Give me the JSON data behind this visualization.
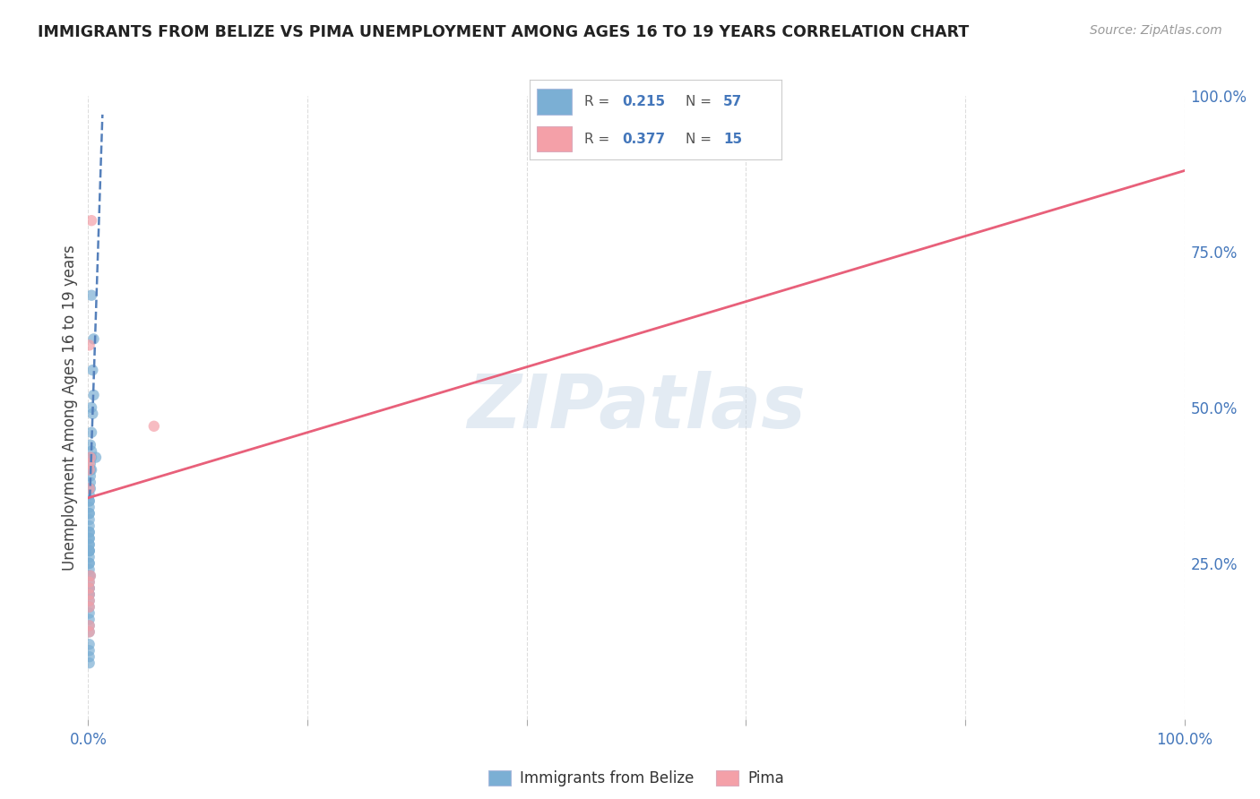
{
  "title": "IMMIGRANTS FROM BELIZE VS PIMA UNEMPLOYMENT AMONG AGES 16 TO 19 YEARS CORRELATION CHART",
  "source": "Source: ZipAtlas.com",
  "ylabel": "Unemployment Among Ages 16 to 19 years",
  "xlim": [
    0.0,
    1.0
  ],
  "ylim": [
    0.0,
    1.0
  ],
  "blue_color": "#7BAFD4",
  "pink_color": "#F4A0A8",
  "blue_line_color": "#5580BB",
  "pink_line_color": "#E8607A",
  "legend_R1": "0.215",
  "legend_N1": "57",
  "legend_R2": "0.377",
  "legend_N2": "15",
  "blue_scatter_x": [
    0.003,
    0.005,
    0.004,
    0.005,
    0.003,
    0.004,
    0.003,
    0.002,
    0.003,
    0.003,
    0.002,
    0.002,
    0.002,
    0.003,
    0.002,
    0.002,
    0.002,
    0.001,
    0.001,
    0.001,
    0.001,
    0.001,
    0.001,
    0.001,
    0.001,
    0.001,
    0.001,
    0.001,
    0.001,
    0.001,
    0.001,
    0.001,
    0.001,
    0.001,
    0.001,
    0.001,
    0.001,
    0.001,
    0.001,
    0.001,
    0.002,
    0.001,
    0.001,
    0.001,
    0.001,
    0.001,
    0.001,
    0.001,
    0.001,
    0.001,
    0.007,
    0.001,
    0.001,
    0.001,
    0.001,
    0.001,
    0.001
  ],
  "blue_scatter_y": [
    0.68,
    0.61,
    0.56,
    0.52,
    0.5,
    0.49,
    0.46,
    0.44,
    0.43,
    0.42,
    0.42,
    0.41,
    0.4,
    0.4,
    0.39,
    0.38,
    0.37,
    0.37,
    0.36,
    0.35,
    0.35,
    0.34,
    0.33,
    0.33,
    0.32,
    0.31,
    0.3,
    0.3,
    0.29,
    0.29,
    0.28,
    0.28,
    0.27,
    0.27,
    0.27,
    0.26,
    0.25,
    0.25,
    0.24,
    0.23,
    0.23,
    0.22,
    0.21,
    0.21,
    0.2,
    0.2,
    0.19,
    0.18,
    0.17,
    0.16,
    0.42,
    0.15,
    0.14,
    0.12,
    0.11,
    0.1,
    0.09
  ],
  "pink_scatter_x": [
    0.003,
    0.001,
    0.002,
    0.001,
    0.001,
    0.001,
    0.002,
    0.001,
    0.001,
    0.001,
    0.001,
    0.06,
    0.001,
    0.001,
    0.001
  ],
  "pink_scatter_y": [
    0.8,
    0.6,
    0.42,
    0.41,
    0.4,
    0.37,
    0.23,
    0.22,
    0.21,
    0.2,
    0.19,
    0.47,
    0.18,
    0.15,
    0.14
  ],
  "blue_line_x0": 0.0015,
  "blue_line_y0": 0.355,
  "blue_line_x1": 0.013,
  "blue_line_y1": 0.97,
  "pink_line_x0": 0.0,
  "pink_line_y0": 0.355,
  "pink_line_x1": 1.0,
  "pink_line_y1": 0.88,
  "watermark": "ZIPatlas",
  "bg_color": "#FFFFFF",
  "grid_color": "#DDDDDD",
  "grid_style": "--"
}
